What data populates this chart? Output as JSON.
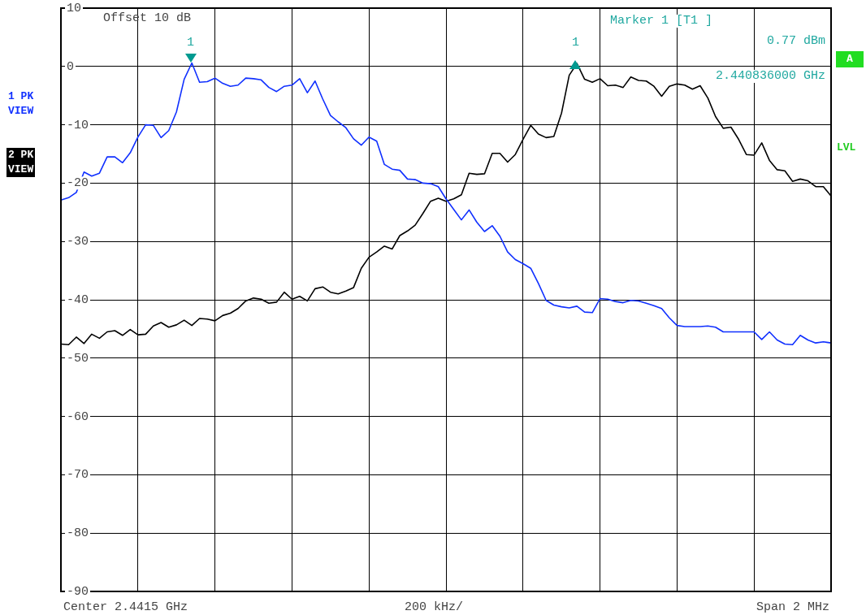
{
  "chart_data": {
    "type": "line",
    "categories": [
      null,
      null,
      null,
      null,
      null,
      null,
      null,
      null,
      null,
      null,
      null,
      null,
      null,
      null,
      null,
      null,
      null,
      null,
      null,
      null,
      null,
      null,
      null,
      null,
      null,
      null,
      null,
      null,
      null,
      null,
      null,
      null,
      null,
      null,
      null,
      null,
      null,
      null,
      null,
      null,
      null,
      null,
      null,
      null,
      null,
      null,
      null,
      null,
      null,
      null,
      null,
      null,
      null,
      null,
      null,
      null,
      null,
      null,
      null,
      null,
      null,
      null,
      null,
      null,
      null,
      null,
      null,
      null,
      null,
      null,
      null,
      null,
      null,
      null,
      null,
      null,
      null,
      null,
      null,
      null,
      null,
      null,
      null,
      null,
      null,
      null,
      null,
      null,
      null,
      null,
      null,
      null,
      null,
      null,
      null,
      null,
      null,
      null,
      null,
      null,
      null
    ],
    "ylim": [
      -90,
      10
    ],
    "yticks": [
      10,
      0,
      -10,
      -20,
      -30,
      -40,
      -50,
      -60,
      -70,
      -80,
      -90
    ],
    "tick_labels": "y",
    "grid": true,
    "marker": "none",
    "line_style": "solid",
    "series": [
      {
        "name": "1 PK VIEW",
        "color": "#1030ff",
        "values": [
          -22.9,
          -22.5,
          -21.6,
          -18.1,
          -18.8,
          -18.3,
          -15.5,
          -15.5,
          -16.5,
          -14.8,
          -12.1,
          -10.0,
          -10.1,
          -12.2,
          -11.0,
          -7.8,
          -2.2,
          0.6,
          -2.7,
          -2.6,
          -2.0,
          -2.9,
          -3.4,
          -3.2,
          -2.0,
          -2.1,
          -2.3,
          -3.6,
          -4.3,
          -3.4,
          -3.2,
          -2.1,
          -4.5,
          -2.5,
          -5.6,
          -8.4,
          -9.5,
          -10.5,
          -12.4,
          -13.5,
          -12.1,
          -12.8,
          -16.8,
          -17.6,
          -17.8,
          -19.3,
          -19.4,
          -20.0,
          -20.1,
          -20.6,
          -22.7,
          -24.5,
          -26.3,
          -24.6,
          -26.7,
          -28.3,
          -27.3,
          -29.1,
          -31.8,
          -33.1,
          -33.8,
          -34.6,
          -37.2,
          -40.1,
          -40.9,
          -41.2,
          -41.4,
          -41.1,
          -42.1,
          -42.2,
          -39.8,
          -39.9,
          -40.3,
          -40.5,
          -40.1,
          -40.2,
          -40.6,
          -41.0,
          -41.5,
          -43.1,
          -44.4,
          -44.6,
          -44.6,
          -44.6,
          -44.5,
          -44.7,
          -45.5,
          -45.5,
          -45.5,
          -45.5,
          -45.5,
          -46.8,
          -45.5,
          -46.9,
          -47.6,
          -47.7,
          -46.1,
          -46.9,
          -47.4,
          -47.2,
          -47.4
        ]
      },
      {
        "name": "2 PK VIEW",
        "color": "#000000",
        "values": [
          -47.6,
          -47.7,
          -46.4,
          -47.5,
          -45.9,
          -46.6,
          -45.5,
          -45.3,
          -46.1,
          -45.1,
          -46.0,
          -45.9,
          -44.5,
          -43.9,
          -44.7,
          -44.3,
          -43.5,
          -44.4,
          -43.2,
          -43.3,
          -43.6,
          -42.7,
          -42.3,
          -41.5,
          -40.2,
          -39.7,
          -39.9,
          -40.6,
          -40.4,
          -38.7,
          -39.9,
          -39.4,
          -40.2,
          -38.1,
          -37.8,
          -38.7,
          -39.0,
          -38.5,
          -37.9,
          -34.6,
          -32.7,
          -31.8,
          -30.8,
          -31.3,
          -29.0,
          -28.2,
          -27.2,
          -25.2,
          -23.1,
          -22.6,
          -23.1,
          -22.7,
          -22.0,
          -18.3,
          -18.5,
          -18.4,
          -14.9,
          -14.9,
          -16.4,
          -15.1,
          -12.5,
          -10.1,
          -11.6,
          -12.2,
          -12.0,
          -8.0,
          -1.5,
          0.5,
          -2.2,
          -2.7,
          -2.1,
          -3.3,
          -3.2,
          -3.6,
          -1.8,
          -2.4,
          -2.5,
          -3.4,
          -5.1,
          -3.4,
          -3.0,
          -3.2,
          -3.9,
          -3.3,
          -5.4,
          -8.6,
          -10.6,
          -10.4,
          -12.5,
          -15.1,
          -15.2,
          -13.1,
          -16.1,
          -17.7,
          -17.9,
          -19.7,
          -19.3,
          -19.6,
          -20.6,
          -20.6,
          -22.2
        ]
      }
    ],
    "annotations": [
      "Offset 10 dB",
      "Marker 1 [T1 ]",
      "0.77 dBm",
      "2.440836000 GHz",
      "A",
      "LVL",
      "Center 2.4415 GHz",
      "200 kHz/",
      "Span 2 MHz",
      "1",
      "1"
    ]
  }
}
